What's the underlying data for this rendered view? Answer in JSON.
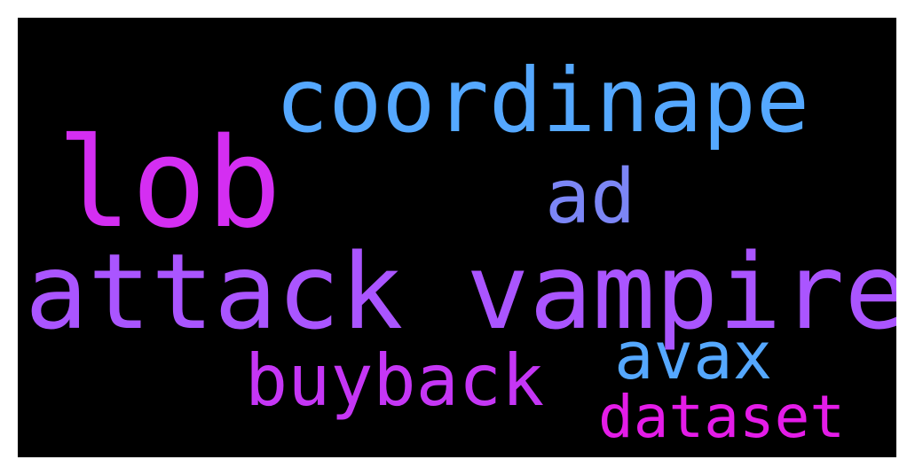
{
  "background_color": "#000000",
  "words": [
    {
      "key": "coordinape",
      "text": "coordinape",
      "color": "#55A8FF"
    },
    {
      "key": "lob",
      "text": "lob",
      "color": "#D42EF2"
    },
    {
      "key": "ad",
      "text": "ad",
      "color": "#7C86F6"
    },
    {
      "key": "attack",
      "text": "attack vampire",
      "color": "#AA55FF"
    },
    {
      "key": "avax",
      "text": "avax",
      "color": "#55A8FF"
    },
    {
      "key": "buyback",
      "text": "buyback",
      "color": "#C536F5"
    },
    {
      "key": "dataset",
      "text": "dataset",
      "color": "#E41CE8"
    }
  ]
}
